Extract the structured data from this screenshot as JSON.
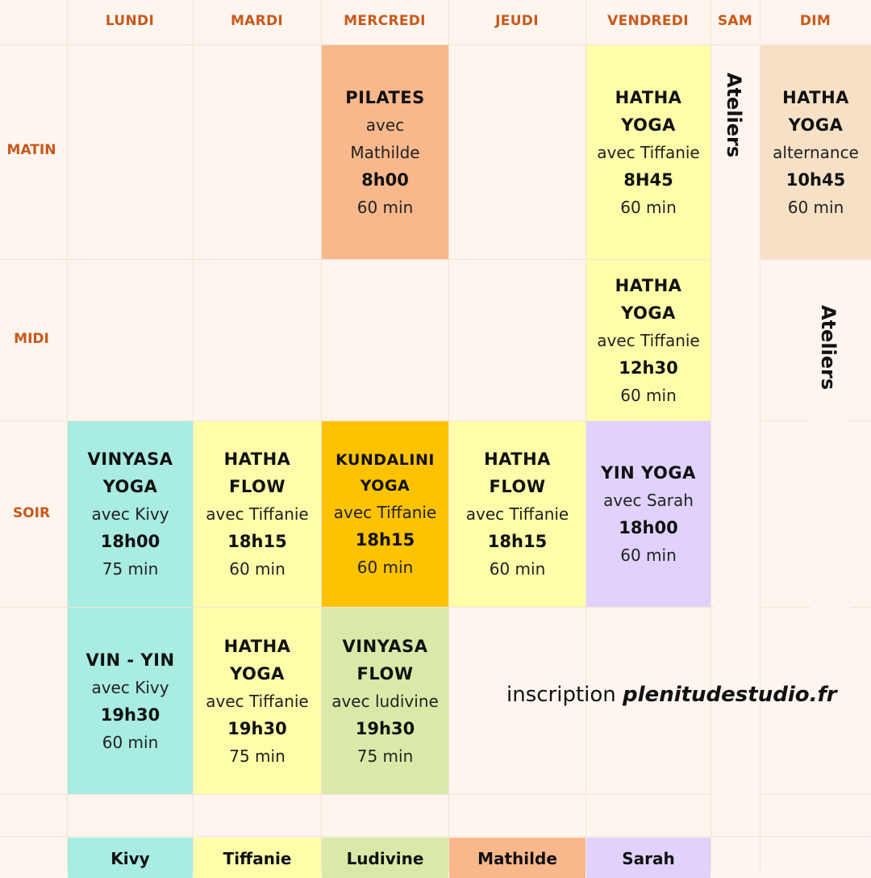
{
  "days": [
    "LUNDI",
    "MARDI",
    "MERCREDI",
    "JEUDI",
    "VENDREDI",
    "SAM",
    "DIM"
  ],
  "periods": [
    "MATIN",
    "MIDI",
    "SOIR"
  ],
  "colors": {
    "background": "#fdf5ee",
    "header_text": "#c8581c",
    "kivy": "#a8ece2",
    "tiffanie": "#fdfdaa",
    "ludivine": "#d9eaa8",
    "mathilde": "#f8b88b",
    "sarah": "#e0d2fc",
    "kundalini": "#fec300",
    "dim_matin": "#f6e1c6"
  },
  "classes": {
    "mer_matin": {
      "title": "PILATES",
      "teacher": "avec",
      "teacher2": "Mathilde",
      "time": "8h00",
      "duration": "60 min"
    },
    "ven_matin": {
      "title1": "HATHA",
      "title2": "YOGA",
      "teacher": "avec Tiffanie",
      "time": "8H45",
      "duration": "60 min"
    },
    "dim_matin": {
      "title1": "HATHA",
      "title2": "YOGA",
      "teacher": "alternance",
      "time": "10h45",
      "duration": "60 min"
    },
    "ven_midi": {
      "title1": "HATHA",
      "title2": "YOGA",
      "teacher": "avec Tiffanie",
      "time": "12h30",
      "duration": "60 min"
    },
    "lun_soir": {
      "title1": "VINYASA",
      "title2": "YOGA",
      "teacher": "avec Kivy",
      "time": "18h00",
      "duration": "75 min"
    },
    "mar_soir": {
      "title1": "HATHA",
      "title2": "FLOW",
      "teacher": "avec Tiffanie",
      "time": "18h15",
      "duration": "60 min"
    },
    "mer_soir": {
      "title1": "KUNDALINI",
      "title2": "YOGA",
      "teacher": "avec Tiffanie",
      "time": "18h15",
      "duration": "60 min"
    },
    "jeu_soir": {
      "title1": "HATHA",
      "title2": "FLOW",
      "teacher": "avec Tiffanie",
      "time": "18h15",
      "duration": "60 min"
    },
    "ven_soir": {
      "title": "YIN YOGA",
      "teacher": "avec Sarah",
      "time": "18h00",
      "duration": "60 min"
    },
    "lun_soir2": {
      "title": "VIN - YIN",
      "teacher": "avec Kivy",
      "time": "19h30",
      "duration": "60 min"
    },
    "mar_soir2": {
      "title1": "HATHA",
      "title2": "YOGA",
      "teacher": "avec Tiffanie",
      "time": "19h30",
      "duration": "75 min"
    },
    "mer_soir2": {
      "title1": "VINYASA",
      "title2": "FLOW",
      "teacher": "avec ludivine",
      "time": "19h30",
      "duration": "75 min"
    }
  },
  "ateliers": "Ateliers",
  "inscription": {
    "label": "inscription",
    "url": "plenitudestudio.fr"
  },
  "legend": [
    "Kivy",
    "Tiffanie",
    "Ludivine",
    "Mathilde",
    "Sarah"
  ]
}
